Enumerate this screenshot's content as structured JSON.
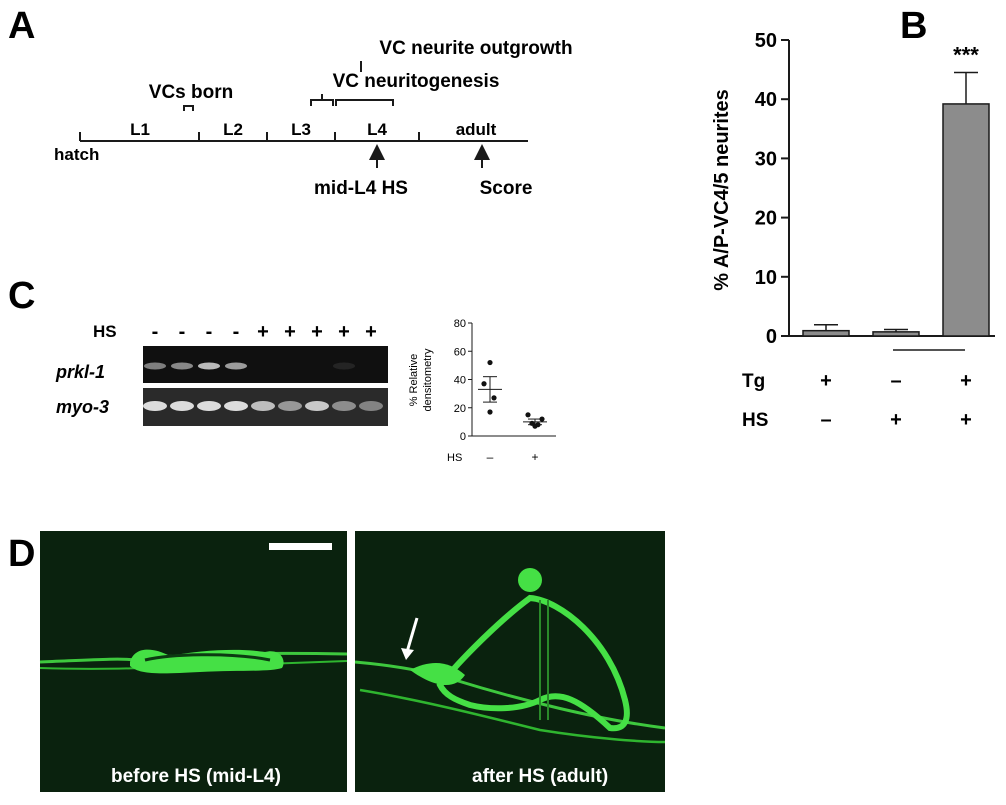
{
  "panelA": {
    "letter": "A",
    "stages": [
      "L1",
      "L2",
      "L3",
      "L4",
      "adult"
    ],
    "hatch": "hatch",
    "vcs_born": "VCs born",
    "neuritogenesis": "VC neuritogenesis",
    "outgrowth": "VC neurite outgrowth",
    "hs_label": "mid-L4 HS",
    "score_label": "Score"
  },
  "panelB": {
    "letter": "B",
    "row_labels": [
      "Tg",
      "HS"
    ],
    "tg_values": [
      "+",
      "–",
      "+"
    ],
    "hs_values": [
      "–",
      "+",
      "+"
    ],
    "significance": "***"
  },
  "panelC": {
    "letter": "C",
    "hs_row_label": "HS",
    "hs_signs": [
      "-",
      "-",
      "-",
      "-",
      "+",
      "+",
      "+",
      "+",
      "+"
    ],
    "gene1": "prkl-1",
    "gene2": "myo-3",
    "inset_ylabel_1": "% Relative",
    "inset_ylabel_2": "densitometry",
    "inset_yticks": [
      "80",
      "60",
      "40",
      "20",
      "0"
    ],
    "inset_x_prefix": "HS",
    "inset_groups": [
      "–",
      "+"
    ]
  },
  "panelD": {
    "letter": "D",
    "caption_left": "before HS (mid-L4)",
    "caption_right": "after HS (adult)"
  },
  "chart_data": {
    "type": "bar",
    "ylabel": "% A/P-VC4/5 neurites",
    "ylim": [
      0,
      50
    ],
    "yticks": [
      0,
      10,
      20,
      30,
      40,
      50
    ],
    "categories": [
      "Tg+ HS–",
      "Tg– HS+",
      "Tg+ HS+"
    ],
    "values": [
      0.9,
      0.7,
      39.2
    ],
    "errors": [
      1.0,
      0.4,
      5.3
    ],
    "bar_color": "#8c8c8c",
    "grid": false
  },
  "inset_data": {
    "type": "scatter",
    "ylim": [
      0,
      80
    ],
    "groups": [
      {
        "label": "–",
        "points": [
          52,
          37,
          27,
          17
        ],
        "mean": 33,
        "sem": 9
      },
      {
        "label": "+",
        "points": [
          15,
          12,
          9,
          8,
          7
        ],
        "mean": 10,
        "sem": 2
      }
    ]
  }
}
